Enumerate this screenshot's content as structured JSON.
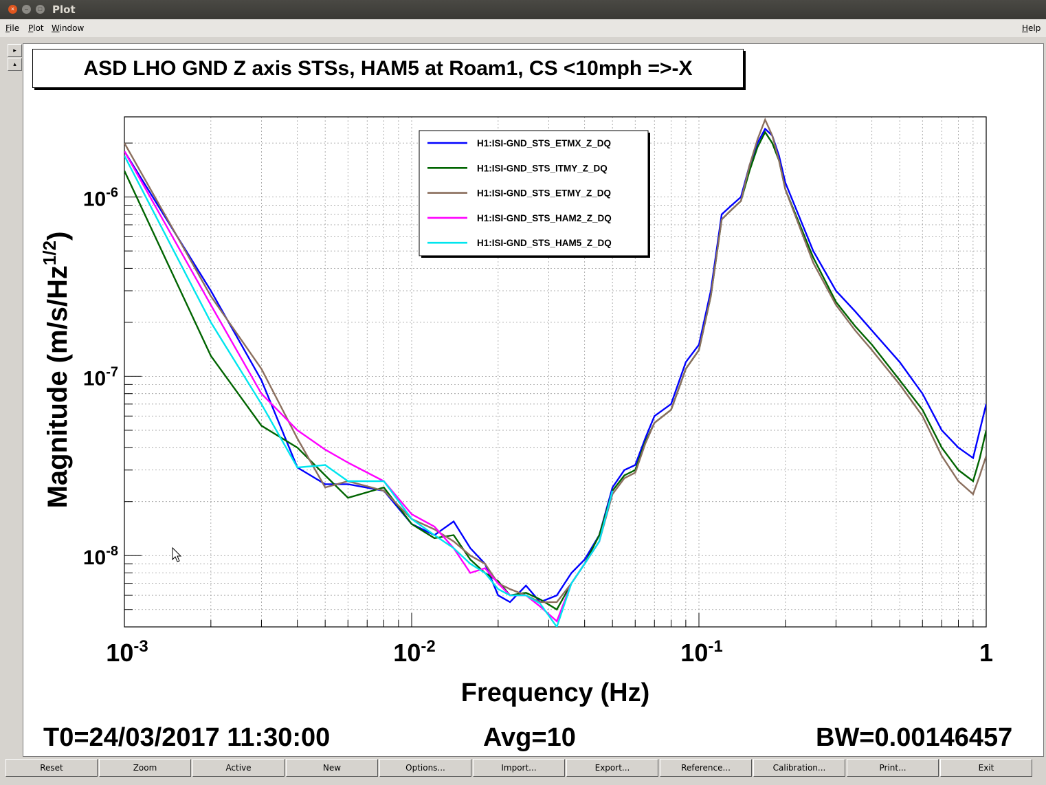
{
  "window": {
    "title": "Plot"
  },
  "menu": {
    "file": "File",
    "plot": "Plot",
    "window": "Window",
    "help": "Help"
  },
  "side_buttons": {
    "up": "▸",
    "down": "▴"
  },
  "chart_data": {
    "type": "line",
    "title": "ASD LHO GND Z axis STSs, HAM5 at Roam1, CS <10mph =>-X",
    "xlabel": "Frequency (Hz)",
    "ylabel": "Magnitude (m/s/Hz^(1/2))",
    "xscale": "log",
    "yscale": "log",
    "xlim": [
      0.001,
      1
    ],
    "ylim": [
      4e-09,
      2.8e-06
    ],
    "x_ticks": [
      "10^-3",
      "10^-2",
      "10^-1",
      "1"
    ],
    "y_ticks": [
      "10^-8",
      "10^-7",
      "10^-6"
    ],
    "grid": true,
    "legend_position": "top-center",
    "series": [
      {
        "name": "H1:ISI-GND_STS_ETMX_Z_DQ",
        "color": "#0000ff",
        "points": [
          [
            0.001,
            1.8e-06
          ],
          [
            0.002,
            3e-07
          ],
          [
            0.003,
            9.5e-08
          ],
          [
            0.004,
            3.1e-08
          ],
          [
            0.005,
            2.5e-08
          ],
          [
            0.006,
            2.5e-08
          ],
          [
            0.008,
            2.3e-08
          ],
          [
            0.01,
            1.5e-08
          ],
          [
            0.012,
            1.3e-08
          ],
          [
            0.014,
            1.55e-08
          ],
          [
            0.016,
            1.1e-08
          ],
          [
            0.018,
            9e-09
          ],
          [
            0.02,
            6e-09
          ],
          [
            0.022,
            5.5e-09
          ],
          [
            0.025,
            6.8e-09
          ],
          [
            0.028,
            5.5e-09
          ],
          [
            0.032,
            6e-09
          ],
          [
            0.036,
            8e-09
          ],
          [
            0.04,
            9.5e-09
          ],
          [
            0.045,
            1.3e-08
          ],
          [
            0.05,
            2.4e-08
          ],
          [
            0.055,
            3e-08
          ],
          [
            0.06,
            3.2e-08
          ],
          [
            0.065,
            4.5e-08
          ],
          [
            0.07,
            6e-08
          ],
          [
            0.08,
            7e-08
          ],
          [
            0.09,
            1.2e-07
          ],
          [
            0.1,
            1.5e-07
          ],
          [
            0.11,
            3e-07
          ],
          [
            0.12,
            8e-07
          ],
          [
            0.13,
            9e-07
          ],
          [
            0.14,
            1e-06
          ],
          [
            0.15,
            1.5e-06
          ],
          [
            0.16,
            2e-06
          ],
          [
            0.17,
            2.4e-06
          ],
          [
            0.18,
            2.2e-06
          ],
          [
            0.19,
            1.7e-06
          ],
          [
            0.2,
            1.2e-06
          ],
          [
            0.25,
            5e-07
          ],
          [
            0.3,
            3e-07
          ],
          [
            0.35,
            2.3e-07
          ],
          [
            0.4,
            1.8e-07
          ],
          [
            0.5,
            1.2e-07
          ],
          [
            0.6,
            8e-08
          ],
          [
            0.7,
            5e-08
          ],
          [
            0.8,
            4e-08
          ],
          [
            0.9,
            3.5e-08
          ],
          [
            0.95,
            5e-08
          ],
          [
            1.0,
            7e-08
          ]
        ]
      },
      {
        "name": "H1:ISI-GND_STS_ITMY_Z_DQ",
        "color": "#006400",
        "points": [
          [
            0.001,
            1.4e-06
          ],
          [
            0.002,
            1.3e-07
          ],
          [
            0.003,
            5.3e-08
          ],
          [
            0.004,
            4e-08
          ],
          [
            0.005,
            2.8e-08
          ],
          [
            0.006,
            2.1e-08
          ],
          [
            0.008,
            2.4e-08
          ],
          [
            0.01,
            1.5e-08
          ],
          [
            0.012,
            1.25e-08
          ],
          [
            0.014,
            1.3e-08
          ],
          [
            0.016,
            9.5e-09
          ],
          [
            0.018,
            8e-09
          ],
          [
            0.02,
            7.2e-09
          ],
          [
            0.022,
            6e-09
          ],
          [
            0.025,
            6.2e-09
          ],
          [
            0.028,
            5.7e-09
          ],
          [
            0.032,
            5e-09
          ],
          [
            0.036,
            7e-09
          ],
          [
            0.04,
            9e-09
          ],
          [
            0.045,
            1.3e-08
          ],
          [
            0.05,
            2.3e-08
          ],
          [
            0.055,
            2.8e-08
          ],
          [
            0.06,
            3e-08
          ],
          [
            0.065,
            4.3e-08
          ],
          [
            0.07,
            5.5e-08
          ],
          [
            0.08,
            6.5e-08
          ],
          [
            0.09,
            1.1e-07
          ],
          [
            0.1,
            1.4e-07
          ],
          [
            0.11,
            2.8e-07
          ],
          [
            0.12,
            7.5e-07
          ],
          [
            0.13,
            8.5e-07
          ],
          [
            0.14,
            9.5e-07
          ],
          [
            0.15,
            1.4e-06
          ],
          [
            0.16,
            1.9e-06
          ],
          [
            0.17,
            2.3e-06
          ],
          [
            0.18,
            2e-06
          ],
          [
            0.19,
            1.6e-06
          ],
          [
            0.2,
            1.1e-06
          ],
          [
            0.25,
            4.6e-07
          ],
          [
            0.3,
            2.6e-07
          ],
          [
            0.35,
            1.9e-07
          ],
          [
            0.4,
            1.5e-07
          ],
          [
            0.5,
            9.5e-08
          ],
          [
            0.6,
            6.5e-08
          ],
          [
            0.7,
            4e-08
          ],
          [
            0.8,
            3e-08
          ],
          [
            0.9,
            2.6e-08
          ],
          [
            0.95,
            3.5e-08
          ],
          [
            1.0,
            5e-08
          ]
        ]
      },
      {
        "name": "H1:ISI-GND_STS_ETMY_Z_DQ",
        "color": "#8b6f5e",
        "points": [
          [
            0.001,
            2e-06
          ],
          [
            0.002,
            2.8e-07
          ],
          [
            0.003,
            1.1e-07
          ],
          [
            0.004,
            4.5e-08
          ],
          [
            0.005,
            2.4e-08
          ],
          [
            0.006,
            2.6e-08
          ],
          [
            0.008,
            2.3e-08
          ],
          [
            0.01,
            1.6e-08
          ],
          [
            0.012,
            1.4e-08
          ],
          [
            0.014,
            1.2e-08
          ],
          [
            0.016,
            1e-08
          ],
          [
            0.018,
            9e-09
          ],
          [
            0.02,
            7e-09
          ],
          [
            0.022,
            6.5e-09
          ],
          [
            0.025,
            6e-09
          ],
          [
            0.028,
            5.5e-09
          ],
          [
            0.032,
            5.5e-09
          ],
          [
            0.036,
            7e-09
          ],
          [
            0.04,
            9e-09
          ],
          [
            0.045,
            1.2e-08
          ],
          [
            0.05,
            2.2e-08
          ],
          [
            0.055,
            2.7e-08
          ],
          [
            0.06,
            2.9e-08
          ],
          [
            0.065,
            4.2e-08
          ],
          [
            0.07,
            5.5e-08
          ],
          [
            0.08,
            6.5e-08
          ],
          [
            0.09,
            1.1e-07
          ],
          [
            0.1,
            1.4e-07
          ],
          [
            0.11,
            2.8e-07
          ],
          [
            0.12,
            7.5e-07
          ],
          [
            0.13,
            8.5e-07
          ],
          [
            0.14,
            9.5e-07
          ],
          [
            0.15,
            1.5e-06
          ],
          [
            0.16,
            2.1e-06
          ],
          [
            0.17,
            2.7e-06
          ],
          [
            0.18,
            2.2e-06
          ],
          [
            0.19,
            1.6e-06
          ],
          [
            0.2,
            1.1e-06
          ],
          [
            0.25,
            4.3e-07
          ],
          [
            0.3,
            2.5e-07
          ],
          [
            0.35,
            1.8e-07
          ],
          [
            0.4,
            1.4e-07
          ],
          [
            0.5,
            9e-08
          ],
          [
            0.6,
            6e-08
          ],
          [
            0.7,
            3.6e-08
          ],
          [
            0.8,
            2.6e-08
          ],
          [
            0.9,
            2.2e-08
          ],
          [
            0.95,
            2.8e-08
          ],
          [
            1.0,
            3.6e-08
          ]
        ]
      },
      {
        "name": "H1:ISI-GND_STS_HAM2_Z_DQ",
        "color": "#ff00ff",
        "points": [
          [
            0.001,
            1.8e-06
          ],
          [
            0.002,
            2.5e-07
          ],
          [
            0.003,
            8e-08
          ],
          [
            0.004,
            5e-08
          ],
          [
            0.005,
            3.9e-08
          ],
          [
            0.006,
            3.3e-08
          ],
          [
            0.008,
            2.6e-08
          ],
          [
            0.01,
            1.7e-08
          ],
          [
            0.012,
            1.45e-08
          ],
          [
            0.014,
            1.1e-08
          ],
          [
            0.016,
            8e-09
          ],
          [
            0.018,
            8.5e-09
          ],
          [
            0.02,
            7e-09
          ],
          [
            0.022,
            6e-09
          ],
          [
            0.025,
            6e-09
          ],
          [
            0.028,
            5.2e-09
          ],
          [
            0.032,
            4.3e-09
          ],
          [
            0.036,
            7e-09
          ],
          [
            0.04,
            9e-09
          ],
          [
            0.045,
            1.2e-08
          ],
          [
            0.05,
            2.3e-08
          ]
        ]
      },
      {
        "name": "H1:ISI-GND_STS_HAM5_Z_DQ",
        "color": "#00e5ee",
        "points": [
          [
            0.001,
            1.7e-06
          ],
          [
            0.002,
            2e-07
          ],
          [
            0.003,
            7e-08
          ],
          [
            0.004,
            3.1e-08
          ],
          [
            0.005,
            3.2e-08
          ],
          [
            0.006,
            2.6e-08
          ],
          [
            0.008,
            2.6e-08
          ],
          [
            0.01,
            1.6e-08
          ],
          [
            0.012,
            1.3e-08
          ],
          [
            0.014,
            1.1e-08
          ],
          [
            0.016,
            9e-09
          ],
          [
            0.018,
            8e-09
          ],
          [
            0.02,
            6.5e-09
          ],
          [
            0.022,
            6e-09
          ],
          [
            0.025,
            6e-09
          ],
          [
            0.028,
            5.4e-09
          ],
          [
            0.032,
            4e-09
          ],
          [
            0.036,
            7e-09
          ],
          [
            0.04,
            9e-09
          ],
          [
            0.045,
            1.2e-08
          ],
          [
            0.05,
            2.3e-08
          ]
        ]
      }
    ]
  },
  "footer": {
    "t0": "T0=24/03/2017 11:30:00",
    "avg": "Avg=10",
    "bw": "BW=0.00146457"
  },
  "buttons": [
    "Reset",
    "Zoom",
    "Active",
    "New",
    "Options...",
    "Import...",
    "Export...",
    "Reference...",
    "Calibration...",
    "Print...",
    "Exit"
  ]
}
